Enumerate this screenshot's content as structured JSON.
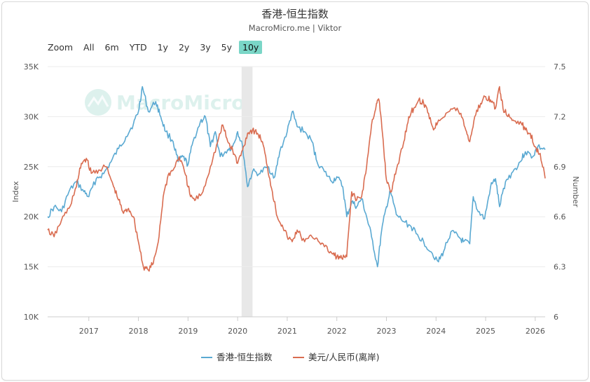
{
  "chart_data": {
    "type": "line",
    "title": "香港-恒生指数",
    "subtitle": "MacroMicro.me | Viktor",
    "watermark": "MacroMicro",
    "range_selector": {
      "label": "Zoom",
      "buttons": [
        "All",
        "6m",
        "YTD",
        "1y",
        "2y",
        "3y",
        "5y",
        "10y"
      ],
      "selected": "10y"
    },
    "x_ticks": [
      "2017",
      "2018",
      "2019",
      "2020",
      "2021",
      "2022",
      "2023",
      "2024",
      "2025",
      "2026"
    ],
    "xlim": [
      2016.17,
      2026.2
    ],
    "shaded_period": [
      2020.08,
      2020.3
    ],
    "y_left": {
      "label": "Index",
      "ticks": [
        "10K",
        "15K",
        "20K",
        "25K",
        "30K",
        "35K"
      ],
      "range": [
        10000,
        35000
      ]
    },
    "y_right": {
      "label": "Number",
      "ticks": [
        "6",
        "6.3",
        "6.6",
        "6.9",
        "7.2",
        "7.5"
      ],
      "range": [
        6.0,
        7.5
      ]
    },
    "legend_position": "bottom",
    "series": [
      {
        "name": "香港-恒生指数",
        "axis": "left",
        "color": "#5aa9d2",
        "points": [
          [
            2016.17,
            20000
          ],
          [
            2016.3,
            21000
          ],
          [
            2016.45,
            20500
          ],
          [
            2016.6,
            22500
          ],
          [
            2016.75,
            23500
          ],
          [
            2016.9,
            22500
          ],
          [
            2017.0,
            22000
          ],
          [
            2017.15,
            23800
          ],
          [
            2017.3,
            24300
          ],
          [
            2017.45,
            25500
          ],
          [
            2017.6,
            26800
          ],
          [
            2017.75,
            28000
          ],
          [
            2017.9,
            29300
          ],
          [
            2018.0,
            30500
          ],
          [
            2018.08,
            33000
          ],
          [
            2018.2,
            30500
          ],
          [
            2018.35,
            31500
          ],
          [
            2018.45,
            30000
          ],
          [
            2018.55,
            28500
          ],
          [
            2018.7,
            27500
          ],
          [
            2018.8,
            25500
          ],
          [
            2018.9,
            26000
          ],
          [
            2019.0,
            25200
          ],
          [
            2019.1,
            27500
          ],
          [
            2019.25,
            29500
          ],
          [
            2019.35,
            30000
          ],
          [
            2019.45,
            27000
          ],
          [
            2019.55,
            28500
          ],
          [
            2019.65,
            26000
          ],
          [
            2019.8,
            26700
          ],
          [
            2019.9,
            27000
          ],
          [
            2020.0,
            28500
          ],
          [
            2020.1,
            27000
          ],
          [
            2020.2,
            23000
          ],
          [
            2020.3,
            24500
          ],
          [
            2020.45,
            24300
          ],
          [
            2020.6,
            25000
          ],
          [
            2020.75,
            24000
          ],
          [
            2020.85,
            26500
          ],
          [
            2021.0,
            28500
          ],
          [
            2021.1,
            30500
          ],
          [
            2021.2,
            29000
          ],
          [
            2021.35,
            28500
          ],
          [
            2021.5,
            27500
          ],
          [
            2021.6,
            25500
          ],
          [
            2021.75,
            24500
          ],
          [
            2021.9,
            23500
          ],
          [
            2022.0,
            24000
          ],
          [
            2022.12,
            23000
          ],
          [
            2022.2,
            20000
          ],
          [
            2022.3,
            21500
          ],
          [
            2022.4,
            21000
          ],
          [
            2022.5,
            21800
          ],
          [
            2022.6,
            20000
          ],
          [
            2022.7,
            18000
          ],
          [
            2022.82,
            15000
          ],
          [
            2022.9,
            18500
          ],
          [
            2023.0,
            21000
          ],
          [
            2023.08,
            22500
          ],
          [
            2023.2,
            20200
          ],
          [
            2023.35,
            19500
          ],
          [
            2023.5,
            19000
          ],
          [
            2023.6,
            18300
          ],
          [
            2023.75,
            17500
          ],
          [
            2023.9,
            16500
          ],
          [
            2024.05,
            15500
          ],
          [
            2024.15,
            16500
          ],
          [
            2024.3,
            18500
          ],
          [
            2024.45,
            18000
          ],
          [
            2024.55,
            17500
          ],
          [
            2024.68,
            17300
          ],
          [
            2024.75,
            22000
          ],
          [
            2024.85,
            20500
          ],
          [
            2024.98,
            19800
          ],
          [
            2025.1,
            23000
          ],
          [
            2025.2,
            23800
          ],
          [
            2025.28,
            21000
          ],
          [
            2025.4,
            23500
          ],
          [
            2025.55,
            24500
          ],
          [
            2025.7,
            25500
          ],
          [
            2025.8,
            26500
          ],
          [
            2025.95,
            26000
          ],
          [
            2026.05,
            27000
          ],
          [
            2026.2,
            26700
          ]
        ]
      },
      {
        "name": "美元/人民币(离岸)",
        "axis": "right",
        "color": "#d96c50",
        "points": [
          [
            2016.17,
            6.52
          ],
          [
            2016.3,
            6.48
          ],
          [
            2016.45,
            6.58
          ],
          [
            2016.6,
            6.65
          ],
          [
            2016.75,
            6.78
          ],
          [
            2016.85,
            6.92
          ],
          [
            2016.95,
            6.95
          ],
          [
            2017.05,
            6.86
          ],
          [
            2017.2,
            6.88
          ],
          [
            2017.35,
            6.9
          ],
          [
            2017.5,
            6.78
          ],
          [
            2017.6,
            6.7
          ],
          [
            2017.7,
            6.62
          ],
          [
            2017.8,
            6.65
          ],
          [
            2017.9,
            6.6
          ],
          [
            2018.0,
            6.45
          ],
          [
            2018.1,
            6.3
          ],
          [
            2018.2,
            6.28
          ],
          [
            2018.3,
            6.32
          ],
          [
            2018.4,
            6.45
          ],
          [
            2018.5,
            6.72
          ],
          [
            2018.6,
            6.85
          ],
          [
            2018.7,
            6.88
          ],
          [
            2018.82,
            6.96
          ],
          [
            2018.95,
            6.85
          ],
          [
            2019.05,
            6.72
          ],
          [
            2019.15,
            6.7
          ],
          [
            2019.3,
            6.75
          ],
          [
            2019.45,
            6.9
          ],
          [
            2019.6,
            7.05
          ],
          [
            2019.7,
            7.15
          ],
          [
            2019.8,
            7.05
          ],
          [
            2019.9,
            7.0
          ],
          [
            2020.0,
            6.92
          ],
          [
            2020.1,
            7.0
          ],
          [
            2020.2,
            7.1
          ],
          [
            2020.3,
            7.12
          ],
          [
            2020.4,
            7.1
          ],
          [
            2020.5,
            7.05
          ],
          [
            2020.6,
            6.9
          ],
          [
            2020.7,
            6.75
          ],
          [
            2020.8,
            6.6
          ],
          [
            2020.9,
            6.55
          ],
          [
            2021.0,
            6.48
          ],
          [
            2021.1,
            6.45
          ],
          [
            2021.2,
            6.52
          ],
          [
            2021.35,
            6.45
          ],
          [
            2021.5,
            6.48
          ],
          [
            2021.6,
            6.47
          ],
          [
            2021.75,
            6.42
          ],
          [
            2021.9,
            6.38
          ],
          [
            2022.0,
            6.36
          ],
          [
            2022.1,
            6.35
          ],
          [
            2022.2,
            6.36
          ],
          [
            2022.3,
            6.75
          ],
          [
            2022.4,
            6.7
          ],
          [
            2022.5,
            6.72
          ],
          [
            2022.6,
            6.9
          ],
          [
            2022.7,
            7.15
          ],
          [
            2022.8,
            7.28
          ],
          [
            2022.85,
            7.3
          ],
          [
            2022.92,
            7.1
          ],
          [
            2023.0,
            6.82
          ],
          [
            2023.1,
            6.75
          ],
          [
            2023.2,
            6.88
          ],
          [
            2023.35,
            7.05
          ],
          [
            2023.45,
            7.2
          ],
          [
            2023.55,
            7.25
          ],
          [
            2023.65,
            7.3
          ],
          [
            2023.75,
            7.28
          ],
          [
            2023.85,
            7.22
          ],
          [
            2023.95,
            7.12
          ],
          [
            2024.05,
            7.18
          ],
          [
            2024.2,
            7.22
          ],
          [
            2024.35,
            7.25
          ],
          [
            2024.5,
            7.22
          ],
          [
            2024.6,
            7.12
          ],
          [
            2024.68,
            7.05
          ],
          [
            2024.78,
            7.2
          ],
          [
            2024.9,
            7.28
          ],
          [
            2025.0,
            7.32
          ],
          [
            2025.1,
            7.3
          ],
          [
            2025.2,
            7.25
          ],
          [
            2025.28,
            7.38
          ],
          [
            2025.35,
            7.25
          ],
          [
            2025.45,
            7.2
          ],
          [
            2025.55,
            7.18
          ],
          [
            2025.7,
            7.17
          ],
          [
            2025.8,
            7.12
          ],
          [
            2025.9,
            7.1
          ],
          [
            2026.0,
            7.02
          ],
          [
            2026.1,
            6.98
          ],
          [
            2026.2,
            6.83
          ]
        ]
      }
    ]
  }
}
